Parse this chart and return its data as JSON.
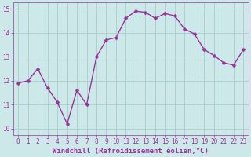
{
  "x": [
    0,
    1,
    2,
    3,
    4,
    5,
    6,
    7,
    8,
    9,
    10,
    11,
    12,
    13,
    14,
    15,
    16,
    17,
    18,
    19,
    20,
    21,
    22,
    23
  ],
  "y": [
    11.9,
    12.0,
    12.5,
    11.7,
    11.1,
    10.2,
    11.6,
    11.0,
    13.0,
    13.7,
    13.8,
    14.6,
    14.9,
    14.85,
    14.6,
    14.8,
    14.7,
    14.15,
    13.95,
    13.3,
    13.05,
    12.75,
    12.65,
    13.3
  ],
  "line_color": "#993399",
  "marker": "D",
  "marker_size": 2.5,
  "bg_color": "#cce8e8",
  "grid_color": "#aacccc",
  "ylim": [
    9.75,
    15.25
  ],
  "xlim": [
    -0.5,
    23.5
  ],
  "yticks": [
    10,
    11,
    12,
    13,
    14,
    15
  ],
  "xticks": [
    0,
    1,
    2,
    3,
    4,
    5,
    6,
    7,
    8,
    9,
    10,
    11,
    12,
    13,
    14,
    15,
    16,
    17,
    18,
    19,
    20,
    21,
    22,
    23
  ],
  "xlabel": "Windchill (Refroidissement éolien,°C)",
  "xlabel_fontsize": 6.5,
  "tick_fontsize": 5.5,
  "line_color_hex": "#993399",
  "line_width": 1.0,
  "spine_color": "#993399"
}
